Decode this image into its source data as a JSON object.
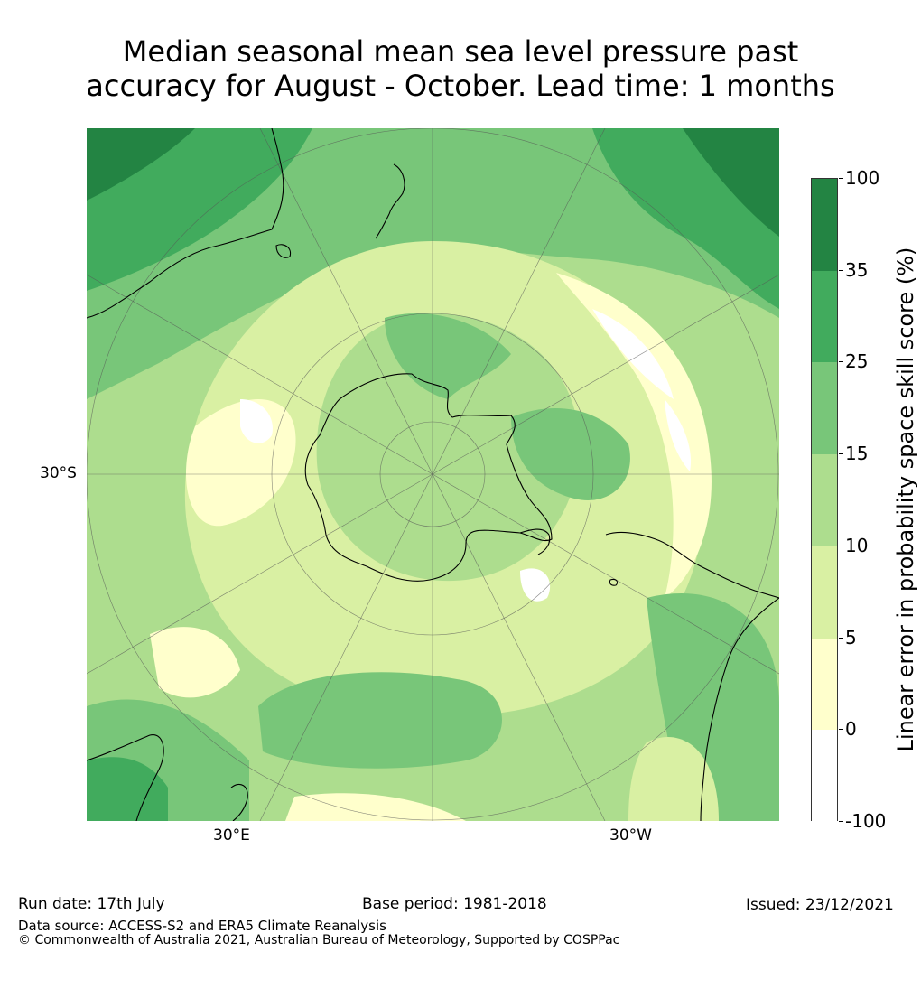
{
  "title": {
    "line1": "Median seasonal mean sea level pressure past",
    "line2": "accuracy for August - October. Lead time: 1 months"
  },
  "map": {
    "projection": "south-polar-stereographic",
    "axis_labels": {
      "lat": "30°S",
      "lon_east": "30°E",
      "lon_west": "30°W"
    },
    "colors": {
      "band_-100_0": "#ffffff",
      "band_0_5": "#ffffcc",
      "band_5_10": "#d9f0a3",
      "band_10_15": "#addd8e",
      "band_15_25": "#78c679",
      "band_25_35": "#41ab5d",
      "band_35_100": "#238443",
      "coastline": "#000000",
      "gridline": "#555555"
    }
  },
  "colorbar": {
    "label": "Linear error in probability space skill score (%)",
    "ticks": [
      "100",
      "35",
      "25",
      "15",
      "10",
      "5",
      "0",
      "-100"
    ],
    "bands": [
      {
        "range": "35 to 100",
        "color": "#238443"
      },
      {
        "range": "25 to 35",
        "color": "#41ab5d"
      },
      {
        "range": "15 to 25",
        "color": "#78c679"
      },
      {
        "range": "10 to 15",
        "color": "#addd8e"
      },
      {
        "range": "5 to 10",
        "color": "#d9f0a3"
      },
      {
        "range": "0 to 5",
        "color": "#ffffcc"
      },
      {
        "range": "-100 to 0",
        "color": "#ffffff"
      }
    ]
  },
  "footer": {
    "run_date": "Run date: 17th July",
    "base_period": "Base period: 1981-2018",
    "issued": "Issued: 23/12/2021",
    "data_source": "Data source: ACCESS-S2 and ERA5 Climate Reanalysis",
    "copyright": "© Commonwealth of Australia 2021, Australian Bureau of Meteorology, Supported by COSPPac"
  }
}
